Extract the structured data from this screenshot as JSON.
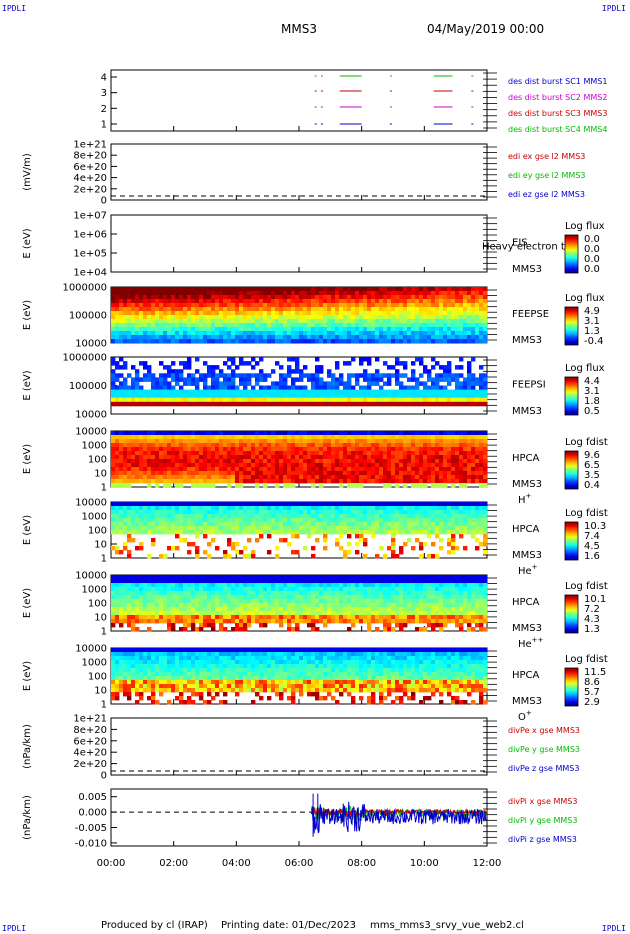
{
  "header": {
    "corner_left_top": "IPDLI",
    "corner_right_top": "IPDLI",
    "corner_left_bottom": "IPDLI",
    "corner_right_bottom": "IPDLI",
    "mission": "MMS3",
    "date": "04/May/2019 00:00"
  },
  "footer": {
    "produced": "Produced by cl (IRAP)",
    "printing_date": "Printing date: 01/Dec/2023",
    "file": "mms_mms3_srvy_vue_web2.cl"
  },
  "chart_data": {
    "type": "multi-panel time series",
    "x_ticks": [
      "00:00",
      "02:00",
      "04:00",
      "06:00",
      "08:00",
      "10:00",
      "12:00"
    ],
    "x_range_hours": [
      0,
      12
    ],
    "panels": [
      {
        "id": "burst",
        "type": "timeline",
        "yticks": [
          "4",
          "3",
          "2",
          "1"
        ],
        "legend": [
          {
            "label": "des dist burst SC1 MMS1",
            "color": "#0000cc"
          },
          {
            "label": "des dist burst SC2 MMS2",
            "color": "#cc00cc"
          },
          {
            "label": "des dist burst SC3 MMS3",
            "color": "#cc0000"
          },
          {
            "label": "des dist burst SC4 MMS4",
            "color": "#00bb00"
          }
        ],
        "segments_hours": [
          [
            6.5,
            6.6
          ],
          [
            6.7,
            6.8
          ],
          [
            7.3,
            8.0
          ],
          [
            8.9,
            9.0
          ],
          [
            10.3,
            10.9
          ],
          [
            11.5,
            11.6
          ]
        ]
      },
      {
        "id": "edi",
        "type": "line",
        "ylabel": "(mV/m)",
        "yticks": [
          "1e+21",
          "8e+20",
          "6e+20",
          "4e+20",
          "2e+20",
          "0"
        ],
        "legend": [
          {
            "label": "edi ex gse l2 MMS3",
            "color": "#cc0000"
          },
          {
            "label": "edi ey gse l2 MMS3",
            "color": "#00bb00"
          },
          {
            "label": "edi ez gse l2 MMS3",
            "color": "#0000cc"
          }
        ]
      },
      {
        "id": "eis",
        "type": "spectrogram",
        "ylabel": "E (eV)",
        "yticks": [
          "1e+07",
          "1e+06",
          "1e+05",
          "1e+04"
        ],
        "labels": [
          "EIS",
          "MMS3"
        ],
        "overlay": "Heavy electron tof",
        "cbar_title": "Log flux",
        "cbar_ticks": [
          "0.0",
          "0.0",
          "0.0",
          "0.0"
        ]
      },
      {
        "id": "feepse",
        "type": "spectrogram",
        "ylabel": "E (eV)",
        "yticks": [
          "1000000",
          "100000",
          "10000"
        ],
        "labels": [
          "FEEPSE",
          "MMS3"
        ],
        "cbar_title": "Log flux",
        "cbar_ticks": [
          "4.9",
          "3.1",
          "1.3",
          "-0.4"
        ]
      },
      {
        "id": "feepsi",
        "type": "spectrogram",
        "ylabel": "E (eV)",
        "yticks": [
          "1000000",
          "100000",
          "10000"
        ],
        "labels": [
          "FEEPSI",
          "MMS3"
        ],
        "cbar_title": "Log flux",
        "cbar_ticks": [
          "4.4",
          "3.1",
          "1.8",
          "0.5"
        ]
      },
      {
        "id": "hpca_h",
        "type": "spectrogram",
        "ylabel": "E (eV)",
        "yticks": [
          "10000",
          "1000",
          "100",
          "10",
          "1"
        ],
        "labels": [
          "HPCA",
          "MMS3"
        ],
        "species": "H",
        "species_sup": "+",
        "cbar_title": "Log fdist",
        "cbar_ticks": [
          "9.6",
          "6.5",
          "3.5",
          "0.4"
        ]
      },
      {
        "id": "hpca_he",
        "type": "spectrogram",
        "ylabel": "E (eV)",
        "yticks": [
          "10000",
          "1000",
          "100",
          "10",
          "1"
        ],
        "labels": [
          "HPCA",
          "MMS3"
        ],
        "species": "He",
        "species_sup": "+",
        "cbar_title": "Log fdist",
        "cbar_ticks": [
          "10.3",
          "7.4",
          "4.5",
          "1.6"
        ]
      },
      {
        "id": "hpca_hepp",
        "type": "spectrogram",
        "ylabel": "E (eV)",
        "yticks": [
          "10000",
          "1000",
          "100",
          "10",
          "1"
        ],
        "labels": [
          "HPCA",
          "MMS3"
        ],
        "species": "He",
        "species_sup": "++",
        "cbar_title": "Log fdist",
        "cbar_ticks": [
          "10.1",
          "7.2",
          "4.3",
          "1.3"
        ]
      },
      {
        "id": "hpca_o",
        "type": "spectrogram",
        "ylabel": "E (eV)",
        "yticks": [
          "10000",
          "1000",
          "100",
          "10",
          "1"
        ],
        "labels": [
          "HPCA",
          "MMS3"
        ],
        "species": "O",
        "species_sup": "+",
        "cbar_title": "Log fdist",
        "cbar_ticks": [
          "11.5",
          "8.6",
          "5.7",
          "2.9"
        ]
      },
      {
        "id": "divpe",
        "type": "line",
        "ylabel": "(nPa/km)",
        "yticks": [
          "1e+21",
          "8e+20",
          "6e+20",
          "4e+20",
          "2e+20",
          "0"
        ],
        "legend": [
          {
            "label": "divPe x gse MMS3",
            "color": "#cc0000"
          },
          {
            "label": "divPe y gse MMS3",
            "color": "#00bb00"
          },
          {
            "label": "divPe z gse MMS3",
            "color": "#0000cc"
          }
        ]
      },
      {
        "id": "divpi",
        "type": "line",
        "ylabel": "(nPa/km)",
        "yticks": [
          "0.005",
          "0.000",
          "-0.005",
          "-0.010"
        ],
        "ytick_values": [
          0.005,
          0.0,
          -0.005,
          -0.01
        ],
        "ylim": [
          -0.011,
          0.0075
        ],
        "data_start_hours": 6.4,
        "legend": [
          {
            "label": "divPi x gse MMS3",
            "color": "#cc0000"
          },
          {
            "label": "divPi y gse MMS3",
            "color": "#00bb00"
          },
          {
            "label": "divPi z gse MMS3",
            "color": "#0000cc"
          }
        ]
      }
    ]
  }
}
